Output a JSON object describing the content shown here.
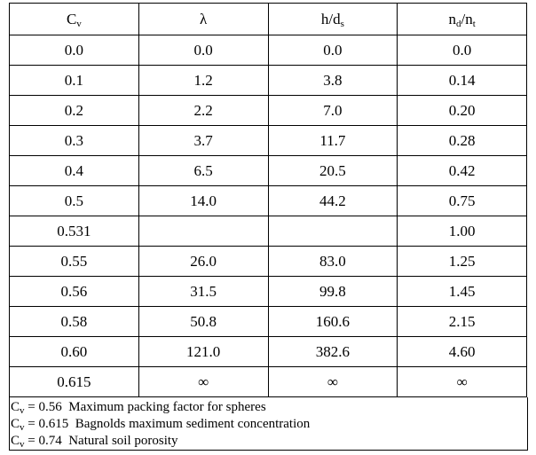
{
  "headers": [
    {
      "main": "C",
      "sub": "v"
    },
    {
      "main": "λ",
      "sub": ""
    },
    {
      "main": "h/d",
      "sub": "s"
    },
    {
      "main": "n",
      "sub": "d",
      "mid": "/n",
      "sub2": "t"
    }
  ],
  "rows": [
    {
      "cells": [
        "0.0",
        "0.0",
        "0.0",
        "0.0"
      ],
      "bold": false
    },
    {
      "cells": [
        "0.1",
        "1.2",
        "3.8",
        "0.14"
      ],
      "bold": false
    },
    {
      "cells": [
        "0.2",
        "2.2",
        "7.0",
        "0.20"
      ],
      "bold": false
    },
    {
      "cells": [
        "0.3",
        "3.7",
        "11.7",
        "0.28"
      ],
      "bold": false
    },
    {
      "cells": [
        "0.4",
        "6.5",
        "20.5",
        "0.42"
      ],
      "bold": false
    },
    {
      "cells": [
        "0.5",
        "14.0",
        "44.2",
        "0.75"
      ],
      "bold": false
    },
    {
      "cells": [
        "0.531",
        "",
        "",
        "1.00"
      ],
      "bold": true
    },
    {
      "cells": [
        "0.55",
        "26.0",
        "83.0",
        "1.25"
      ],
      "bold": false
    },
    {
      "cells": [
        "0.56",
        "31.5",
        "99.8",
        "1.45"
      ],
      "bold": false
    },
    {
      "cells": [
        "0.58",
        "50.8",
        "160.6",
        "2.15"
      ],
      "bold": false
    },
    {
      "cells": [
        "0.60",
        "121.0",
        "382.6",
        "4.60"
      ],
      "bold": false
    },
    {
      "cells": [
        "0.615",
        "∞",
        "∞",
        "∞"
      ],
      "bold": false
    }
  ],
  "notes": [
    {
      "sym": "C",
      "sub": "v",
      "text": " = 0.56  Maximum packing factor for spheres"
    },
    {
      "sym": "C",
      "sub": "v",
      "text": " = 0.615  Bagnolds maximum sediment concentration"
    },
    {
      "sym": "C",
      "sub": "v",
      "text": " = 0.74  Natural soil porosity"
    }
  ]
}
